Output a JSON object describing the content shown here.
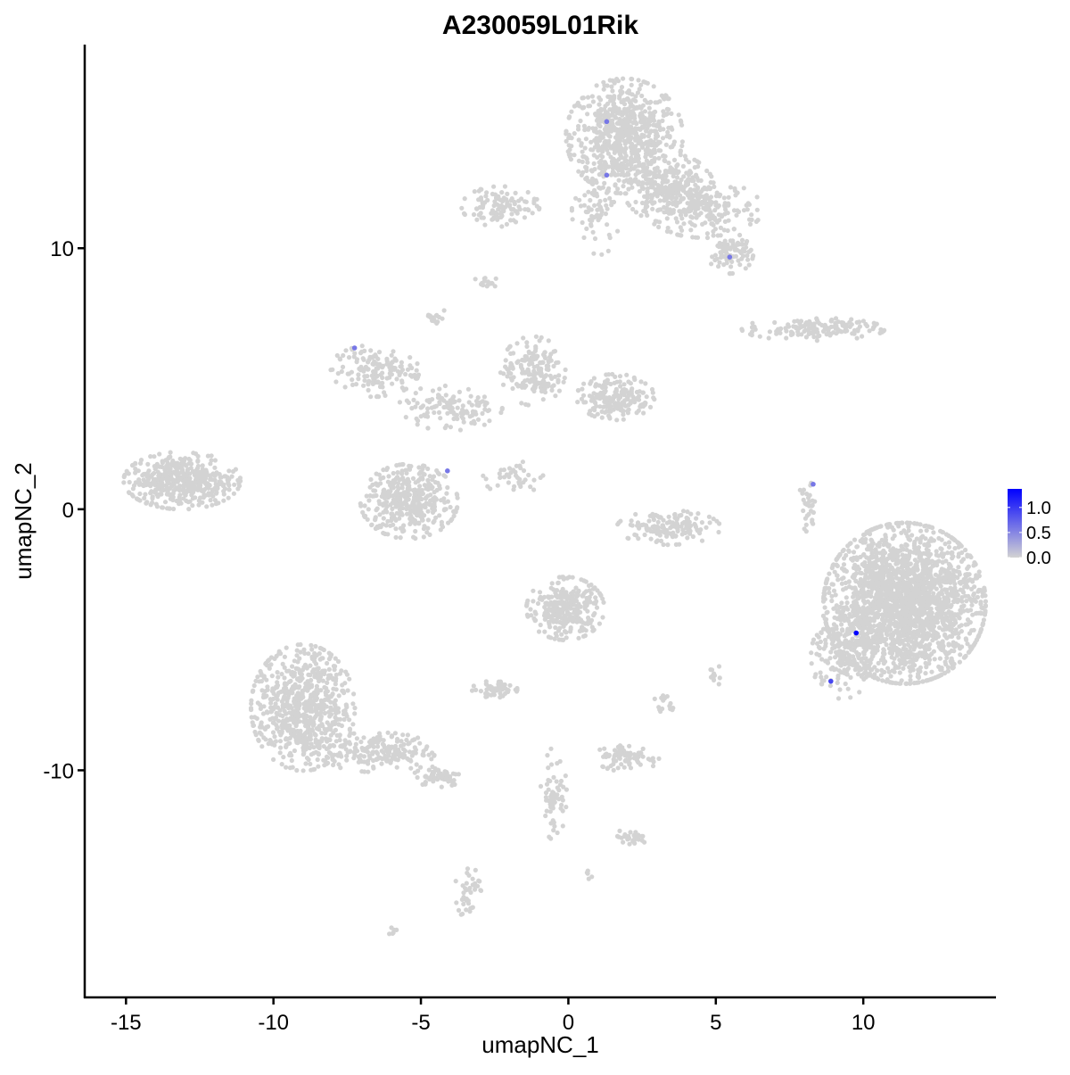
{
  "chart_data": {
    "type": "scatter",
    "title": "A230059L01Rik",
    "xlabel": "umapNC_1",
    "ylabel": "umapNC_2",
    "xlim": [
      -16.4,
      14.5
    ],
    "ylim": [
      -18.7,
      17.8
    ],
    "x_ticks": [
      -15,
      -10,
      -5,
      0,
      5,
      10
    ],
    "y_ticks": [
      -10,
      0,
      10
    ],
    "x_tick_labels": [
      "-15",
      "-10",
      "-5",
      "0",
      "5",
      "10"
    ],
    "y_tick_labels": [
      "-10",
      "0",
      "10"
    ],
    "grid": false,
    "colors": {
      "low": "#d3d3d3",
      "high": "#0000ff"
    },
    "legend": {
      "position": "right",
      "min": 0,
      "max": 1.37,
      "ticks": [
        0.0,
        0.5,
        1.0
      ],
      "tick_labels": [
        "0.0",
        "0.5",
        "1.0"
      ]
    },
    "background_clusters": [
      {
        "x": 1.9,
        "y": 14.3,
        "sx": 0.9,
        "sy": 1.0,
        "n": 700
      },
      {
        "x": 3.4,
        "y": 12.3,
        "sx": 0.7,
        "sy": 0.6,
        "n": 250
      },
      {
        "x": 4.6,
        "y": 11.5,
        "sx": 0.9,
        "sy": 0.5,
        "n": 200
      },
      {
        "x": 5.5,
        "y": 9.8,
        "sx": 0.35,
        "sy": 0.35,
        "n": 90
      },
      {
        "x": 1.0,
        "y": 11.5,
        "sx": 0.4,
        "sy": 0.8,
        "n": 80
      },
      {
        "x": -2.3,
        "y": 11.6,
        "sx": 0.6,
        "sy": 0.35,
        "n": 110
      },
      {
        "x": -2.8,
        "y": 8.7,
        "sx": 0.2,
        "sy": 0.1,
        "n": 15
      },
      {
        "x": -4.5,
        "y": 7.4,
        "sx": 0.15,
        "sy": 0.2,
        "n": 15
      },
      {
        "x": 8.3,
        "y": 6.9,
        "sx": 1.1,
        "sy": 0.2,
        "n": 150
      },
      {
        "x": -13.1,
        "y": 1.1,
        "sx": 0.9,
        "sy": 0.5,
        "n": 450
      },
      {
        "x": -6.6,
        "y": 5.3,
        "sx": 0.7,
        "sy": 0.45,
        "n": 150
      },
      {
        "x": -1.2,
        "y": 5.3,
        "sx": 0.5,
        "sy": 0.6,
        "n": 170
      },
      {
        "x": 1.6,
        "y": 4.3,
        "sx": 0.6,
        "sy": 0.4,
        "n": 200
      },
      {
        "x": -4.0,
        "y": 3.9,
        "sx": 0.8,
        "sy": 0.4,
        "n": 120
      },
      {
        "x": -5.4,
        "y": 0.3,
        "sx": 0.75,
        "sy": 0.65,
        "n": 400
      },
      {
        "x": 3.4,
        "y": -0.7,
        "sx": 0.8,
        "sy": 0.3,
        "n": 150
      },
      {
        "x": 8.1,
        "y": 0.0,
        "sx": 0.15,
        "sy": 0.5,
        "n": 30
      },
      {
        "x": 11.4,
        "y": -3.6,
        "sx": 1.25,
        "sy": 1.4,
        "n": 2200
      },
      {
        "x": 9.3,
        "y": -5.5,
        "sx": 0.5,
        "sy": 0.8,
        "n": 200
      },
      {
        "x": -0.1,
        "y": -3.8,
        "sx": 0.6,
        "sy": 0.55,
        "n": 300
      },
      {
        "x": -2.5,
        "y": -6.9,
        "sx": 0.35,
        "sy": 0.15,
        "n": 60
      },
      {
        "x": -9.0,
        "y": -7.6,
        "sx": 0.8,
        "sy": 1.1,
        "n": 700
      },
      {
        "x": -6.5,
        "y": -9.3,
        "sx": 0.9,
        "sy": 0.35,
        "n": 200
      },
      {
        "x": -4.4,
        "y": -10.2,
        "sx": 0.4,
        "sy": 0.2,
        "n": 60
      },
      {
        "x": 2.0,
        "y": -9.5,
        "sx": 0.5,
        "sy": 0.25,
        "n": 80
      },
      {
        "x": -0.5,
        "y": -10.9,
        "sx": 0.2,
        "sy": 0.8,
        "n": 60
      },
      {
        "x": 2.1,
        "y": -12.6,
        "sx": 0.3,
        "sy": 0.15,
        "n": 30
      },
      {
        "x": -3.4,
        "y": -14.6,
        "sx": 0.2,
        "sy": 0.5,
        "n": 40
      },
      {
        "x": -6.0,
        "y": -16.1,
        "sx": 0.1,
        "sy": 0.08,
        "n": 6
      },
      {
        "x": 0.6,
        "y": -14.0,
        "sx": 0.1,
        "sy": 0.08,
        "n": 5
      },
      {
        "x": 3.3,
        "y": -7.5,
        "sx": 0.2,
        "sy": 0.2,
        "n": 15
      },
      {
        "x": 5.0,
        "y": -6.4,
        "sx": 0.1,
        "sy": 0.2,
        "n": 12
      },
      {
        "x": -1.8,
        "y": 1.2,
        "sx": 0.5,
        "sy": 0.3,
        "n": 40
      }
    ],
    "highlighted_points": [
      {
        "x": 1.3,
        "y": 14.85,
        "value": 0.6
      },
      {
        "x": 1.3,
        "y": 12.8,
        "value": 0.6
      },
      {
        "x": 5.47,
        "y": 9.66,
        "value": 0.6
      },
      {
        "x": -7.25,
        "y": 6.18,
        "value": 0.6
      },
      {
        "x": -4.1,
        "y": 1.47,
        "value": 0.6
      },
      {
        "x": 8.3,
        "y": 0.96,
        "value": 0.6
      },
      {
        "x": 8.9,
        "y": -6.59,
        "value": 0.9
      },
      {
        "x": 9.76,
        "y": -4.74,
        "value": 1.37
      }
    ]
  }
}
